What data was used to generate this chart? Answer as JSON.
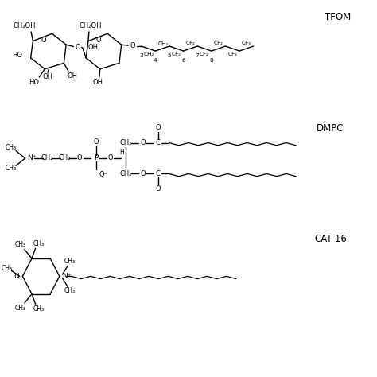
{
  "title_tfom": "TFOM",
  "title_dmpc": "DMPC",
  "title_cat16": "CAT-16",
  "bg_color": "#ffffff",
  "line_color": "#000000",
  "text_color": "#000000",
  "figsize": [
    4.74,
    4.74
  ],
  "dpi": 100
}
